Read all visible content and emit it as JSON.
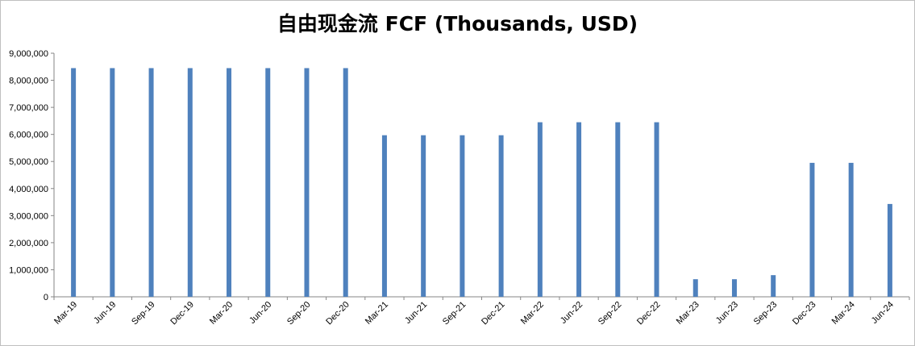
{
  "chart_data": {
    "type": "bar",
    "title": "自由现金流 FCF (Thousands, USD)",
    "xlabel": "",
    "ylabel": "",
    "ylim": [
      0,
      9000000
    ],
    "yticks": [
      "0",
      "1,000,000",
      "2,000,000",
      "3,000,000",
      "4,000,000",
      "5,000,000",
      "6,000,000",
      "7,000,000",
      "8,000,000",
      "9,000,000"
    ],
    "categories": [
      "Mar-19",
      "Jun-19",
      "Sep-19",
      "Dec-19",
      "Mar-20",
      "Jun-20",
      "Sep-20",
      "Dec-20",
      "Mar-21",
      "Jun-21",
      "Sep-21",
      "Dec-21",
      "Mar-22",
      "Jun-22",
      "Sep-22",
      "Dec-22",
      "Mar-23",
      "Jun-23",
      "Sep-23",
      "Dec-23",
      "Mar-24",
      "Jun-24"
    ],
    "values": [
      8450000,
      8450000,
      8450000,
      8450000,
      8450000,
      8450000,
      8450000,
      8450000,
      5970000,
      5970000,
      5970000,
      5970000,
      6450000,
      6450000,
      6450000,
      6450000,
      650000,
      650000,
      800000,
      4950000,
      4950000,
      3430000
    ],
    "bar_color": "#4f81bd",
    "grid": false,
    "legend": "none"
  }
}
